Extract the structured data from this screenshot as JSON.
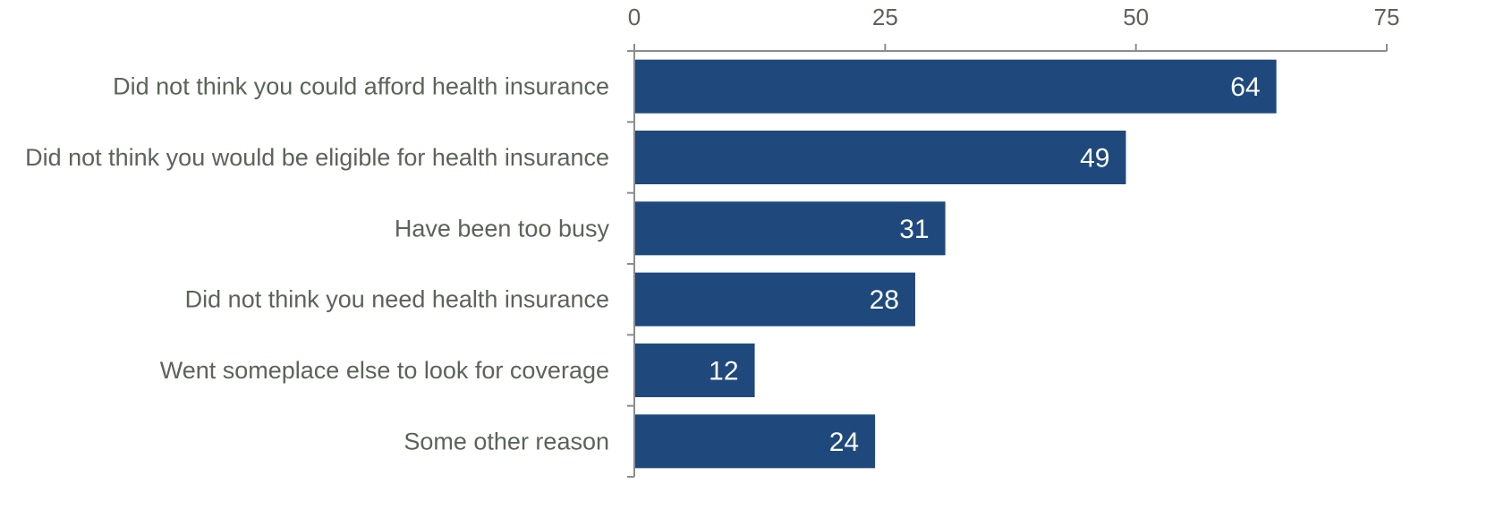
{
  "chart_data": {
    "type": "bar",
    "orientation": "horizontal",
    "categories": [
      "Did not think you could afford health insurance",
      "Did not think you would be eligible for health insurance",
      "Have been too busy",
      "Did not think you need health insurance",
      "Went someplace else to look for coverage",
      "Some other reason"
    ],
    "values": [
      64,
      49,
      31,
      28,
      12,
      24
    ],
    "value_labels": [
      "64",
      "49",
      "31",
      "28",
      "12",
      "24"
    ],
    "title": "",
    "xlabel": "",
    "ylabel": "",
    "xlim": [
      0,
      75
    ],
    "x_ticks": [
      0,
      25,
      50,
      75
    ],
    "x_tick_labels": [
      "0",
      "25",
      "50",
      "75"
    ],
    "x_axis_position": "top",
    "grid": false,
    "legend": "none",
    "bar_color": "#1f497d",
    "label_color": "#5a6458",
    "axis_color": "#8c8c8c",
    "value_label_color": "#ffffff"
  }
}
